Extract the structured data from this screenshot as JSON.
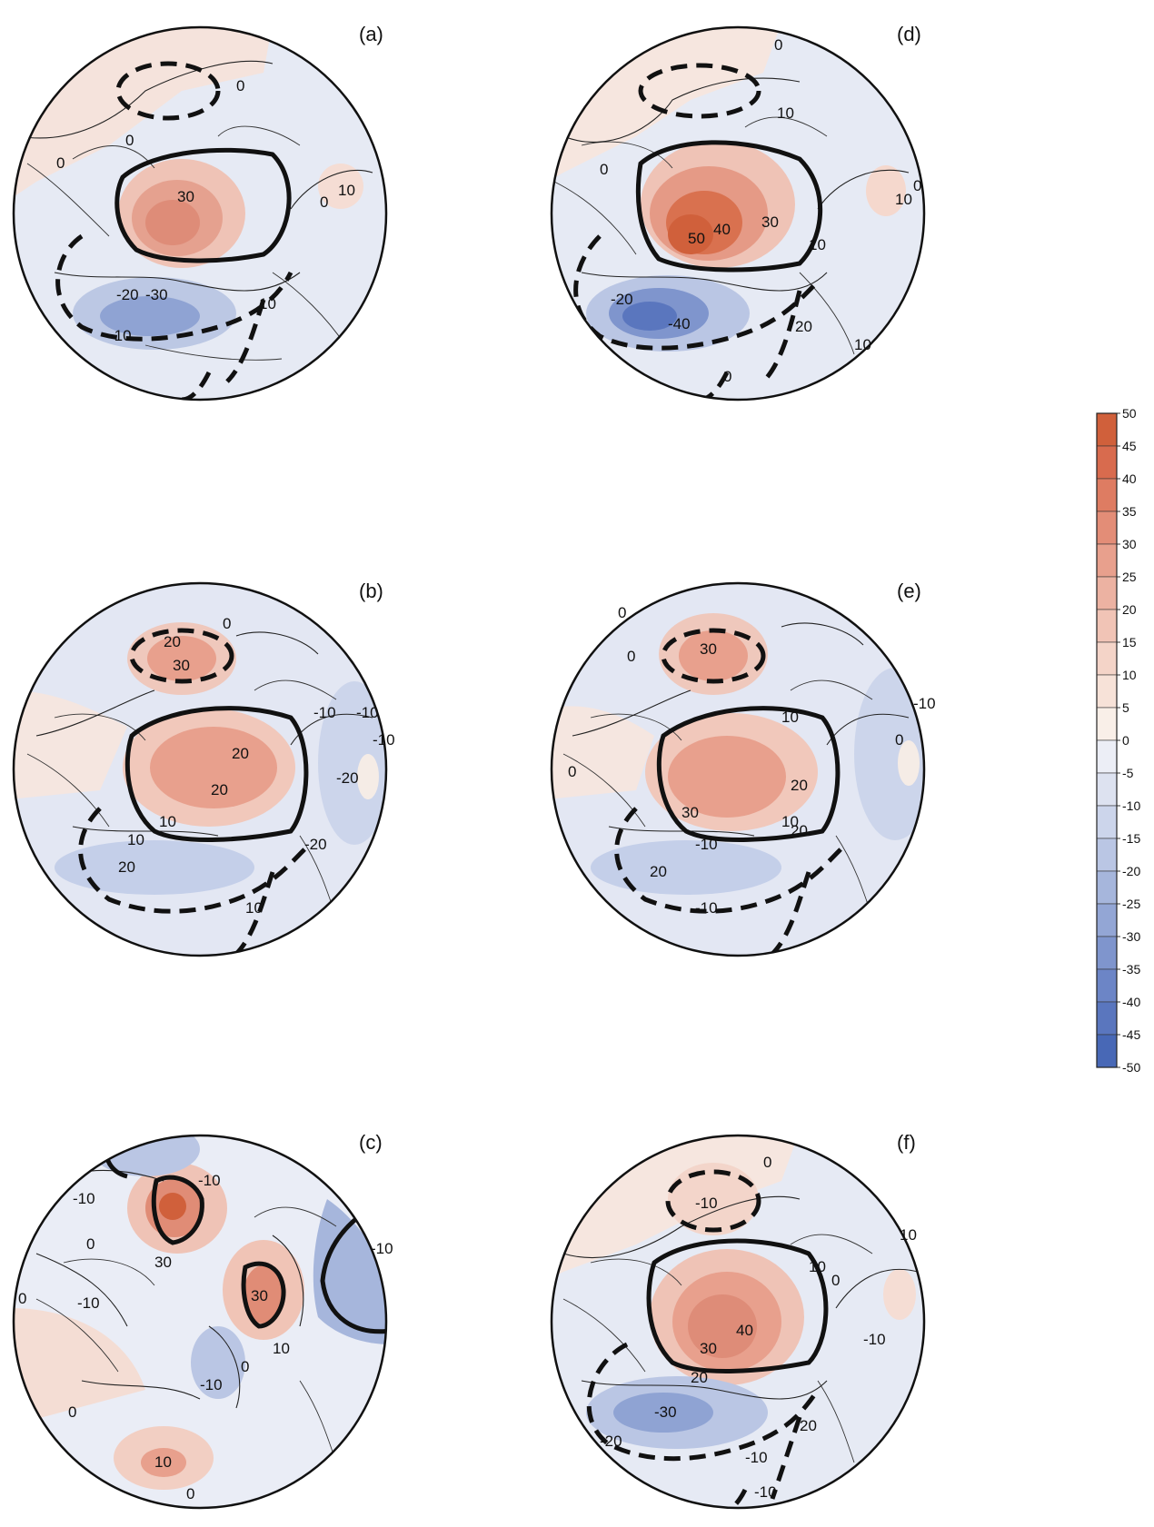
{
  "panels": [
    {
      "id": "a",
      "label": "(a)",
      "contour_labels": [
        "0",
        "0",
        "0",
        "10",
        "0",
        "30",
        "-20",
        "-30",
        "-10",
        "10"
      ]
    },
    {
      "id": "b",
      "label": "(b)",
      "contour_labels": [
        "20",
        "30",
        "0",
        "-10",
        "-10",
        "-10",
        "20",
        "20",
        "-20",
        "10",
        "10",
        "20",
        "-20",
        "10"
      ]
    },
    {
      "id": "c",
      "label": "(c)",
      "contour_labels": [
        "-10",
        "-10",
        "0",
        "30",
        "-10",
        "0",
        "30",
        "10",
        "0",
        "-10",
        "-10",
        "0",
        "10",
        "0"
      ]
    },
    {
      "id": "d",
      "label": "(d)",
      "contour_labels": [
        "0",
        "10",
        "0",
        "10",
        "0",
        "50",
        "40",
        "30",
        "10",
        "-20",
        "-40",
        "20",
        "0",
        "10"
      ]
    },
    {
      "id": "e",
      "label": "(e)",
      "contour_labels": [
        "0",
        "30",
        "0",
        "-10",
        "10",
        "20",
        "0",
        "30",
        "20",
        "10",
        "-10",
        "20",
        "-10",
        "0"
      ]
    },
    {
      "id": "f",
      "label": "(f)",
      "contour_labels": [
        "0",
        "-10",
        "10",
        "10",
        "0",
        "-10",
        "40",
        "30",
        "20",
        "-30",
        "-20",
        "20",
        "-10",
        "-10"
      ]
    }
  ],
  "colorbar": {
    "ticks": [
      "50",
      "45",
      "40",
      "35",
      "30",
      "25",
      "20",
      "15",
      "10",
      "5",
      "0",
      "-5",
      "-10",
      "-15",
      "-20",
      "-25",
      "-30",
      "-35",
      "-40",
      "-45",
      "-50"
    ],
    "colors": [
      "#d0603b",
      "#d86b4e",
      "#de7c62",
      "#e38d77",
      "#e8a08d",
      "#ecb2a2",
      "#f1c4b6",
      "#f4d4c8",
      "#f7e2d8",
      "#f9efe8",
      "#eceef6",
      "#dde2f0",
      "#ccd5eb",
      "#bac6e4",
      "#a6b6dc",
      "#93a6d5",
      "#7f95cd",
      "#6c85c6",
      "#5a76be",
      "#4868b6"
    ]
  }
}
